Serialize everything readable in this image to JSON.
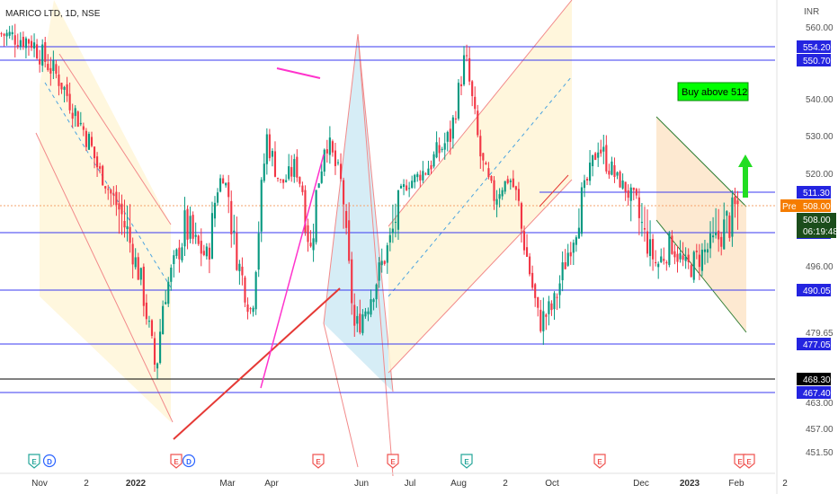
{
  "chart_data": {
    "type": "candlestick",
    "title": "MARICO LTD, 1D, NSE",
    "currency": "INR",
    "y_axis": {
      "ticks": [
        "560.00",
        "540.00",
        "530.00",
        "520.00",
        "496.00",
        "479.65",
        "463.00",
        "457.00",
        "451.50"
      ],
      "ylim": [
        451,
        562
      ],
      "scale": "linear"
    },
    "x_axis": {
      "ticks": [
        {
          "label": "Nov",
          "bold": false
        },
        {
          "label": "2",
          "bold": false
        },
        {
          "label": "2022",
          "bold": true
        },
        {
          "label": "Mar",
          "bold": false
        },
        {
          "label": "Apr",
          "bold": false
        },
        {
          "label": "Jun",
          "bold": false
        },
        {
          "label": "Jul",
          "bold": false
        },
        {
          "label": "Aug",
          "bold": false
        },
        {
          "label": "2",
          "bold": false
        },
        {
          "label": "Oct",
          "bold": false
        },
        {
          "label": "Dec",
          "bold": false
        },
        {
          "label": "2023",
          "bold": true
        },
        {
          "label": "Feb",
          "bold": false
        },
        {
          "label": "2",
          "bold": false
        }
      ]
    },
    "horizontal_levels": [
      {
        "price": 554.2,
        "label": "554.20",
        "color": "#3a3af0"
      },
      {
        "price": 550.7,
        "label": "550.70",
        "color": "#3a3af0"
      },
      {
        "price": 504.6,
        "label": "504.60",
        "color": "#3a3af0"
      },
      {
        "price": 490.05,
        "label": "490.05",
        "color": "#3a3af0"
      },
      {
        "price": 477.05,
        "label": "477.05",
        "color": "#3a3af0"
      },
      {
        "price": 468.3,
        "label": "468.30",
        "color": "#000000"
      },
      {
        "price": 467.4,
        "label": "467.40",
        "color": "#3a3af0"
      },
      {
        "price": 511.3,
        "label": "511.30",
        "color": "#3a3af0"
      }
    ],
    "current_price": {
      "label": "508.00",
      "countdown": "06:19:48",
      "pre_tag": "Pre",
      "pre_value": "508.00"
    },
    "annotation": {
      "text": "Buy above 512",
      "bg": "#00ff00"
    },
    "event_markers": [
      {
        "letter": "E",
        "color": "#26a69a"
      },
      {
        "letter": "D",
        "color": "#2962ff"
      },
      {
        "letter": "E",
        "color": "#ef5350"
      },
      {
        "letter": "D",
        "color": "#2962ff"
      },
      {
        "letter": "E",
        "color": "#ef5350"
      },
      {
        "letter": "E",
        "color": "#ef5350"
      },
      {
        "letter": "E",
        "color": "#26a69a"
      },
      {
        "letter": "E",
        "color": "#ef5350"
      },
      {
        "letter": "E",
        "color": "#ef5350"
      },
      {
        "letter": "E",
        "color": "#ef5350"
      }
    ],
    "colors": {
      "up": "#26a69a",
      "down": "#ef5350",
      "up_candle": "#089981",
      "down_candle": "#f23645"
    },
    "price_path": [
      {
        "t": 0.0,
        "p": 558
      },
      {
        "t": 0.04,
        "p": 556
      },
      {
        "t": 0.08,
        "p": 545
      },
      {
        "t": 0.12,
        "p": 528
      },
      {
        "t": 0.15,
        "p": 510
      },
      {
        "t": 0.17,
        "p": 505
      },
      {
        "t": 0.19,
        "p": 492
      },
      {
        "t": 0.21,
        "p": 470
      },
      {
        "t": 0.22,
        "p": 488
      },
      {
        "t": 0.25,
        "p": 505
      },
      {
        "t": 0.28,
        "p": 498
      },
      {
        "t": 0.3,
        "p": 520
      },
      {
        "t": 0.32,
        "p": 498
      },
      {
        "t": 0.34,
        "p": 484
      },
      {
        "t": 0.36,
        "p": 530
      },
      {
        "t": 0.38,
        "p": 515
      },
      {
        "t": 0.4,
        "p": 522
      },
      {
        "t": 0.42,
        "p": 500
      },
      {
        "t": 0.44,
        "p": 530
      },
      {
        "t": 0.46,
        "p": 518
      },
      {
        "t": 0.48,
        "p": 480
      },
      {
        "t": 0.5,
        "p": 488
      },
      {
        "t": 0.52,
        "p": 498
      },
      {
        "t": 0.55,
        "p": 515
      },
      {
        "t": 0.58,
        "p": 522
      },
      {
        "t": 0.61,
        "p": 530
      },
      {
        "t": 0.63,
        "p": 552
      },
      {
        "t": 0.65,
        "p": 525
      },
      {
        "t": 0.67,
        "p": 510
      },
      {
        "t": 0.69,
        "p": 518
      },
      {
        "t": 0.71,
        "p": 502
      },
      {
        "t": 0.73,
        "p": 482
      },
      {
        "t": 0.75,
        "p": 486
      },
      {
        "t": 0.77,
        "p": 500
      },
      {
        "t": 0.79,
        "p": 512
      },
      {
        "t": 0.81,
        "p": 528
      },
      {
        "t": 0.83,
        "p": 520
      },
      {
        "t": 0.85,
        "p": 512
      },
      {
        "t": 0.87,
        "p": 505
      },
      {
        "t": 0.89,
        "p": 496
      },
      {
        "t": 0.91,
        "p": 502
      },
      {
        "t": 0.93,
        "p": 495
      },
      {
        "t": 1.0,
        "p": 508
      }
    ]
  }
}
